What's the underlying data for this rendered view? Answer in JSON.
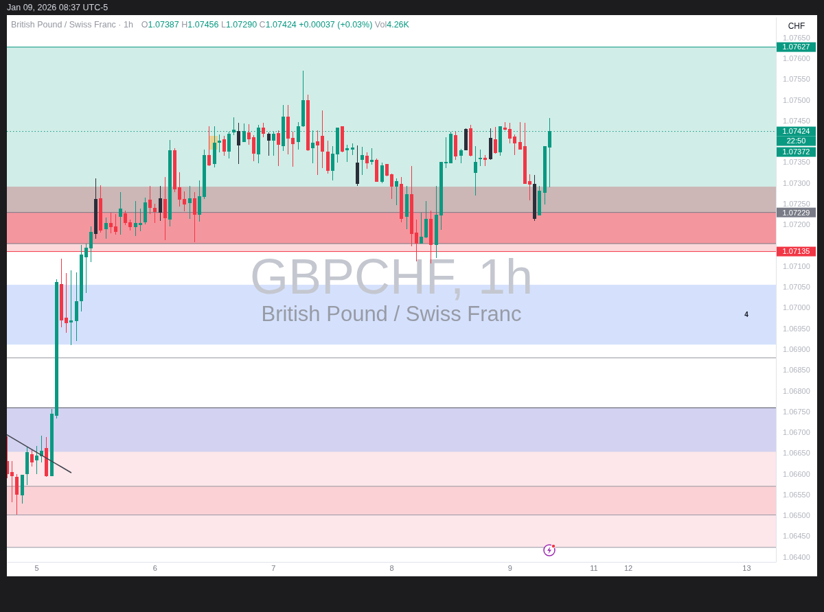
{
  "chart_data": {
    "type": "candlestick",
    "title": "British Pound / Swiss Franc · 1h",
    "subtitle": "O1.07387 H1.07456 L1.07290 C1.07424 +0.00037 (+0.03%) Vol4.26K",
    "ylabel": "CHF",
    "annotations": [
      "Jan 09, 2026 08:37 UTC-5",
      "GBPCHF, 1h",
      "British Pound / Swiss Franc",
      "22:50",
      "1.07372"
    ],
    "categories": [
      null,
      null,
      null,
      null,
      null,
      null,
      "5",
      null,
      null,
      null,
      null,
      null,
      null,
      null,
      null,
      null,
      null,
      null,
      null,
      null,
      null,
      null,
      null,
      null,
      null,
      null,
      null,
      null,
      null,
      null,
      "6",
      null,
      null,
      null,
      null,
      null,
      null,
      null,
      null,
      null,
      null,
      null,
      null,
      null,
      null,
      null,
      null,
      null,
      null,
      null,
      null,
      null,
      null,
      null,
      "7",
      null,
      null,
      null,
      null,
      null,
      null,
      null,
      null,
      null,
      null,
      null,
      null,
      null,
      null,
      null,
      null,
      null,
      null,
      null,
      null,
      null,
      null,
      null,
      "8",
      null,
      null,
      null,
      null,
      null,
      null,
      null,
      null,
      null,
      null,
      null,
      null,
      null,
      null,
      null,
      null,
      null,
      null,
      null,
      null,
      null,
      null,
      null,
      "9",
      null,
      null,
      null,
      null,
      null,
      null,
      null,
      null,
      null,
      null,
      null,
      null,
      null,
      null,
      null,
      null,
      "11",
      null,
      null,
      null,
      null,
      null,
      null,
      "12",
      null,
      null,
      null,
      null,
      null,
      null,
      null,
      null,
      null,
      null,
      null,
      null,
      null,
      null,
      null,
      null,
      null,
      null,
      null,
      null,
      null,
      null,
      null,
      "13",
      null,
      null,
      null,
      null,
      null,
      null
    ],
    "ohlc": [
      [
        1.0663,
        1.0669,
        1.06589,
        1.06601
      ],
      [
        1.06604,
        1.0663,
        1.06531,
        1.06595
      ],
      [
        1.06592,
        1.066,
        1.06502,
        1.0655
      ],
      [
        1.06549,
        1.06597,
        1.06528,
        1.06596
      ],
      [
        1.066,
        1.06663,
        1.06573,
        1.06651
      ],
      [
        1.06646,
        1.06658,
        1.06618,
        1.06629
      ],
      [
        1.06633,
        1.06667,
        1.066,
        1.06643
      ],
      [
        1.06643,
        1.06691,
        1.06628,
        1.06654
      ],
      [
        1.06661,
        1.06688,
        1.06592,
        1.06596
      ],
      [
        1.06595,
        1.06757,
        1.06594,
        1.06743
      ],
      [
        1.06741,
        1.07068,
        1.06733,
        1.0706
      ],
      [
        1.07056,
        1.07117,
        1.06952,
        1.0697
      ],
      [
        1.06975,
        1.07083,
        1.0694,
        1.06964
      ],
      [
        1.06965,
        1.07089,
        1.0691,
        1.06968
      ],
      [
        1.06968,
        1.07085,
        1.06919,
        1.07015
      ],
      [
        1.07016,
        1.07151,
        1.0699,
        1.07127
      ],
      [
        1.07122,
        1.07154,
        1.07035,
        1.07144
      ],
      [
        1.07144,
        1.07195,
        1.0711,
        1.07181
      ],
      [
        1.07179,
        1.07311,
        1.07165,
        1.07261
      ],
      [
        1.07262,
        1.07294,
        1.07181,
        1.07187
      ],
      [
        1.0719,
        1.07217,
        1.07165,
        1.07202
      ],
      [
        1.07202,
        1.07228,
        1.07179,
        1.07195
      ],
      [
        1.07194,
        1.07225,
        1.07176,
        1.07184
      ],
      [
        1.0722,
        1.07278,
        1.07176,
        1.07238
      ],
      [
        1.07225,
        1.07234,
        1.07198,
        1.07205
      ],
      [
        1.07205,
        1.07212,
        1.07185,
        1.07195
      ],
      [
        1.07195,
        1.07256,
        1.07173,
        1.07202
      ],
      [
        1.072,
        1.07239,
        1.07184,
        1.07202
      ],
      [
        1.07206,
        1.07264,
        1.07201,
        1.07252
      ],
      [
        1.07258,
        1.07292,
        1.07225,
        1.07241
      ],
      [
        1.07239,
        1.0725,
        1.07203,
        1.07231
      ],
      [
        1.07229,
        1.07292,
        1.07209,
        1.07262
      ],
      [
        1.07261,
        1.07314,
        1.07163,
        1.07217
      ],
      [
        1.07213,
        1.07404,
        1.07195,
        1.07377
      ],
      [
        1.07377,
        1.07384,
        1.07278,
        1.07286
      ],
      [
        1.07288,
        1.07326,
        1.07244,
        1.0726
      ],
      [
        1.0726,
        1.07279,
        1.07231,
        1.0725
      ],
      [
        1.07253,
        1.07292,
        1.07214,
        1.07262
      ],
      [
        1.07262,
        1.07278,
        1.07157,
        1.07225
      ],
      [
        1.07225,
        1.07306,
        1.07207,
        1.07267
      ],
      [
        1.07267,
        1.0738,
        1.07262,
        1.07366
      ],
      [
        1.07366,
        1.07436,
        1.07341,
        1.07343
      ],
      [
        1.07347,
        1.07436,
        1.07337,
        1.07396
      ],
      [
        1.07398,
        1.07417,
        1.07373,
        1.074
      ],
      [
        1.07404,
        1.07414,
        1.07365,
        1.07377
      ],
      [
        1.07377,
        1.07424,
        1.07359,
        1.07418
      ],
      [
        1.07422,
        1.07458,
        1.07415,
        1.07428
      ],
      [
        1.07424,
        1.07444,
        1.07345,
        1.07391
      ],
      [
        1.074,
        1.07443,
        1.07398,
        1.07424
      ],
      [
        1.07421,
        1.07442,
        1.07392,
        1.07406
      ],
      [
        1.07409,
        1.07415,
        1.07352,
        1.07371
      ],
      [
        1.0737,
        1.07439,
        1.07347,
        1.07432
      ],
      [
        1.07432,
        1.07444,
        1.0741,
        1.0742
      ],
      [
        1.07417,
        1.07421,
        1.07366,
        1.07403
      ],
      [
        1.07403,
        1.07424,
        1.07365,
        1.07418
      ],
      [
        1.07419,
        1.07426,
        1.07341,
        1.07393
      ],
      [
        1.07389,
        1.07488,
        1.07377,
        1.07458
      ],
      [
        1.07458,
        1.07487,
        1.07369,
        1.07408
      ],
      [
        1.07408,
        1.07424,
        1.07339,
        1.07395
      ],
      [
        1.07399,
        1.07446,
        1.07381,
        1.07436
      ],
      [
        1.07438,
        1.0757,
        1.07435,
        1.07499
      ],
      [
        1.07499,
        1.07512,
        1.07377,
        1.0738
      ],
      [
        1.07385,
        1.07426,
        1.07347,
        1.07396
      ],
      [
        1.07399,
        1.07426,
        1.07319,
        1.07391
      ],
      [
        1.07412,
        1.07474,
        1.07336,
        1.07376
      ],
      [
        1.07374,
        1.07402,
        1.07323,
        1.0733
      ],
      [
        1.0733,
        1.07389,
        1.07306,
        1.0737
      ],
      [
        1.0737,
        1.07432,
        1.07349,
        1.07432
      ],
      [
        1.07436,
        1.07436,
        1.07374,
        1.07377
      ],
      [
        1.0738,
        1.07392,
        1.07351,
        1.07382
      ],
      [
        1.07381,
        1.07396,
        1.07367,
        1.07384
      ],
      [
        1.07299,
        1.07391,
        1.07293,
        1.07348
      ],
      [
        1.07356,
        1.07387,
        1.07319,
        1.07366
      ],
      [
        1.07364,
        1.07373,
        1.07334,
        1.07348
      ],
      [
        1.07352,
        1.07384,
        1.07344,
        1.07354
      ],
      [
        1.07355,
        1.07359,
        1.07303,
        1.07304
      ],
      [
        1.07304,
        1.07349,
        1.073,
        1.07342
      ],
      [
        1.07344,
        1.07344,
        1.07316,
        1.07318
      ],
      [
        1.0732,
        1.07323,
        1.07262,
        1.07292
      ],
      [
        1.07292,
        1.07311,
        1.07247,
        1.07303
      ],
      [
        1.07296,
        1.07314,
        1.07206,
        1.07215
      ],
      [
        1.0722,
        1.07292,
        1.07188,
        1.07272
      ],
      [
        1.07272,
        1.07341,
        1.07148,
        1.07179
      ],
      [
        1.07179,
        1.07212,
        1.07111,
        1.07155
      ],
      [
        1.07155,
        1.07229,
        1.07154,
        1.0717
      ],
      [
        1.0717,
        1.07257,
        1.07168,
        1.07212
      ],
      [
        1.07212,
        1.07233,
        1.07107,
        1.07152
      ],
      [
        1.07151,
        1.07292,
        1.0712,
        1.07223
      ],
      [
        1.07223,
        1.07351,
        1.07187,
        1.07349
      ],
      [
        1.07348,
        1.0741,
        1.07336,
        1.0735
      ],
      [
        1.07349,
        1.07424,
        1.07349,
        1.07417
      ],
      [
        1.07414,
        1.07424,
        1.07356,
        1.07365
      ],
      [
        1.07366,
        1.07382,
        1.07347,
        1.07378
      ],
      [
        1.0738,
        1.07432,
        1.07378,
        1.07429
      ],
      [
        1.0743,
        1.07439,
        1.07364,
        1.07366
      ],
      [
        1.07325,
        1.07388,
        1.07269,
        1.0735
      ],
      [
        1.07358,
        1.0738,
        1.07341,
        1.0736
      ],
      [
        1.0736,
        1.07367,
        1.07341,
        1.07356
      ],
      [
        1.07358,
        1.07431,
        1.07356,
        1.07407
      ],
      [
        1.07404,
        1.07435,
        1.0737,
        1.07373
      ],
      [
        1.07374,
        1.07436,
        1.07366,
        1.07435
      ],
      [
        1.07432,
        1.07447,
        1.07426,
        1.07429
      ],
      [
        1.07429,
        1.07444,
        1.07396,
        1.07408
      ],
      [
        1.0741,
        1.07417,
        1.07367,
        1.07397
      ],
      [
        1.07397,
        1.07447,
        1.07382,
        1.07382
      ],
      [
        1.07387,
        1.07444,
        1.07297,
        1.07299
      ],
      [
        1.07303,
        1.07321,
        1.07258,
        1.07297
      ],
      [
        1.07297,
        1.07319,
        1.07209,
        1.07214
      ],
      [
        1.07222,
        1.07292,
        1.07222,
        1.0728
      ],
      [
        1.07278,
        1.07389,
        1.07249,
        1.07387
      ],
      [
        1.07387,
        1.07456,
        1.0729,
        1.07424
      ],
      null,
      null,
      null,
      null,
      null,
      null,
      null,
      null,
      null,
      null,
      null,
      null,
      null,
      null,
      null,
      null,
      null,
      null,
      null,
      null,
      null,
      null,
      null,
      null,
      null,
      null,
      null,
      null,
      null,
      null,
      null,
      null,
      null,
      null,
      null,
      null,
      null,
      null,
      null,
      null,
      null,
      null,
      null,
      null,
      null,
      null
    ],
    "colors": [
      "#f23645",
      "#f23645",
      "#f23645",
      "#089981",
      "#089981",
      "#f23645",
      "#089981",
      "#089981",
      "#f23645",
      "#089981",
      "#089981",
      "#f23645",
      "#f23645",
      "#089981",
      "#089981",
      "#089981",
      "#089981",
      "#089981",
      "#2a2e39",
      "#f23645",
      "#089981",
      "#f23645",
      "#f23645",
      "#089981",
      "#f23645",
      "#f23645",
      "#089981",
      "#089981",
      "#089981",
      "#f23645",
      "#f23645",
      "#2a2e39",
      "#f23645",
      "#089981",
      "#f23645",
      "#f23645",
      "#f23645",
      "#089981",
      "#f23645",
      "#089981",
      "#089981",
      "#f23645",
      "#089981",
      "#089981",
      "#f23645",
      "#089981",
      "#089981",
      "#2a2e39",
      "#089981",
      "#f23645",
      "#f23645",
      "#089981",
      "#f23645",
      "#2a2e39",
      "#089981",
      "#f23645",
      "#089981",
      "#f23645",
      "#f23645",
      "#089981",
      "#089981",
      "#f23645",
      "#089981",
      "#f23645",
      "#f23645",
      "#f23645",
      "#089981",
      "#089981",
      "#f23645",
      "#089981",
      "#089981",
      "#2a2e39",
      "#089981",
      "#f23645",
      "#089981",
      "#f23645",
      "#089981",
      "#f23645",
      "#f23645",
      "#089981",
      "#f23645",
      "#089981",
      "#f23645",
      "#f23645",
      "#089981",
      "#089981",
      "#f23645",
      "#089981",
      "#089981",
      "#089981",
      "#089981",
      "#f23645",
      "#089981",
      "#2a2e39",
      "#f23645",
      "#089981",
      "#089981",
      "#f23645",
      "#2a2e39",
      "#f23645",
      "#089981",
      "#f23645",
      "#f23645",
      "#f23645",
      "#f23645",
      "#f23645",
      "#f23645",
      "#2a2e39",
      "#089981",
      "#089981",
      "#089981",
      null,
      null,
      null,
      null,
      null,
      null,
      null,
      null,
      null,
      null,
      null,
      null,
      null,
      null,
      null,
      null,
      null,
      null,
      null,
      null,
      null,
      null,
      null,
      null,
      null,
      null,
      null,
      null,
      null,
      null,
      null,
      null,
      null,
      null,
      null,
      null,
      null,
      null,
      null,
      null,
      null,
      null,
      null,
      null,
      null,
      null
    ],
    "series": [
      {
        "type": "line",
        "color": "#434651",
        "values": [
          1.06694,
          1.06687,
          1.0668,
          1.06673,
          1.06666,
          1.06659,
          1.06652,
          1.06645,
          1.06638,
          1.06631,
          1.06624,
          1.06617,
          1.0661,
          1.06603,
          null,
          null,
          null,
          null,
          null,
          null,
          null,
          null,
          null,
          null,
          null,
          null,
          null,
          null,
          null,
          null,
          null,
          null,
          null,
          null,
          null,
          null,
          null,
          null,
          null,
          null,
          null,
          null,
          null,
          null,
          null,
          null,
          null,
          null,
          null,
          null,
          null,
          null,
          null,
          null,
          null,
          null,
          null,
          null,
          null,
          null,
          null,
          null,
          null,
          null,
          null,
          null,
          null,
          null,
          null,
          null,
          null,
          null,
          null,
          null,
          null,
          null,
          null,
          null,
          null,
          null,
          null,
          null,
          null,
          null,
          null,
          null,
          null,
          null,
          null,
          null,
          null,
          null,
          null,
          null,
          null,
          null,
          null,
          null,
          null,
          null,
          null,
          null,
          null,
          null,
          null,
          null,
          null,
          null,
          null,
          null,
          null,
          null,
          null,
          null,
          null,
          null,
          null,
          null,
          null,
          null,
          null,
          null,
          null,
          null,
          null,
          null,
          null,
          null,
          null,
          null,
          null,
          null,
          null,
          null,
          null,
          null,
          null,
          null,
          null,
          null,
          null,
          null,
          null,
          null,
          null,
          null,
          null,
          null,
          null,
          null,
          null,
          null,
          null,
          null,
          null,
          null,
          null
        ]
      }
    ],
    "ylim": [
      1.06388,
      1.07699
    ],
    "yticks": [
      {
        "value": 1.064,
        "label": "1.06400"
      },
      {
        "value": 1.0645,
        "label": "1.06450"
      },
      {
        "value": 1.065,
        "label": "1.06500"
      },
      {
        "value": 1.0655,
        "label": "1.06550"
      },
      {
        "value": 1.066,
        "label": "1.06600"
      },
      {
        "value": 1.0665,
        "label": "1.06650"
      },
      {
        "value": 1.067,
        "label": "1.06700"
      },
      {
        "value": 1.0675,
        "label": "1.06750"
      },
      {
        "value": 1.068,
        "label": "1.06800"
      },
      {
        "value": 1.0685,
        "label": "1.06850"
      },
      {
        "value": 1.069,
        "label": "1.06900"
      },
      {
        "value": 1.0695,
        "label": "1.06950"
      },
      {
        "value": 1.07,
        "label": "1.07000"
      },
      {
        "value": 1.0705,
        "label": "1.07050"
      },
      {
        "value": 1.071,
        "label": "1.07100"
      },
      {
        "value": 1.072,
        "label": "1.07200"
      },
      {
        "value": 1.0725,
        "label": "1.07250"
      },
      {
        "value": 1.073,
        "label": "1.07300"
      },
      {
        "value": 1.0735,
        "label": "1.07350"
      },
      {
        "value": 1.0745,
        "label": "1.07450"
      },
      {
        "value": 1.075,
        "label": "1.07500"
      },
      {
        "value": 1.0755,
        "label": "1.07550"
      },
      {
        "value": 1.076,
        "label": "1.07600"
      },
      {
        "value": 1.0765,
        "label": "1.07650"
      }
    ],
    "bands": [
      {
        "axis": "y",
        "from": 1.06423,
        "to": 1.06653,
        "color": "#fde7ea"
      },
      {
        "axis": "y",
        "from": 1.06501,
        "to": 1.0657,
        "color": "#fde7ea"
      },
      {
        "axis": "y",
        "from": 1.06653,
        "to": 1.06759,
        "color": "#d3d2f0"
      },
      {
        "axis": "y",
        "from": 1.06911,
        "to": 1.07055,
        "color": "#d5e1fc",
        "label": "4"
      },
      {
        "axis": "y",
        "from": 1.07154,
        "to": 1.07229,
        "color": "#fde7ea"
      },
      {
        "axis": "y",
        "from": 1.07154,
        "to": 1.07291,
        "color": "#f9c4c9"
      },
      {
        "axis": "y",
        "from": 1.07229,
        "to": 1.07627,
        "color": "#d1ede7"
      },
      {
        "axis": "y",
        "from": 1.07135,
        "to": 1.07229,
        "color": "#fcd8db"
      }
    ],
    "ref_lines": [
      {
        "axis": "y",
        "value": 1.07627,
        "label": "1.07627",
        "color": "#089981"
      },
      {
        "axis": "y",
        "value": 1.07424,
        "label": "1.07424",
        "color": "#089981",
        "line_style": "dotted"
      },
      {
        "axis": "y",
        "value": 1.07229,
        "label": "1.07229",
        "color": "#787b86"
      },
      {
        "axis": "y",
        "value": 1.07154,
        "color": "#787b86"
      },
      {
        "axis": "y",
        "value": 1.07135,
        "label": "1.07135",
        "color": "#f23645"
      },
      {
        "axis": "y",
        "value": 1.06879,
        "color": "#9598a1"
      },
      {
        "axis": "y",
        "value": 1.06759,
        "color": "#50535e"
      },
      {
        "axis": "y",
        "value": 1.0657,
        "color": "#9598a1"
      },
      {
        "axis": "y",
        "value": 1.06501,
        "color": "#9598a1"
      },
      {
        "axis": "y",
        "value": 1.06423,
        "color": "#9598a1"
      }
    ]
  }
}
